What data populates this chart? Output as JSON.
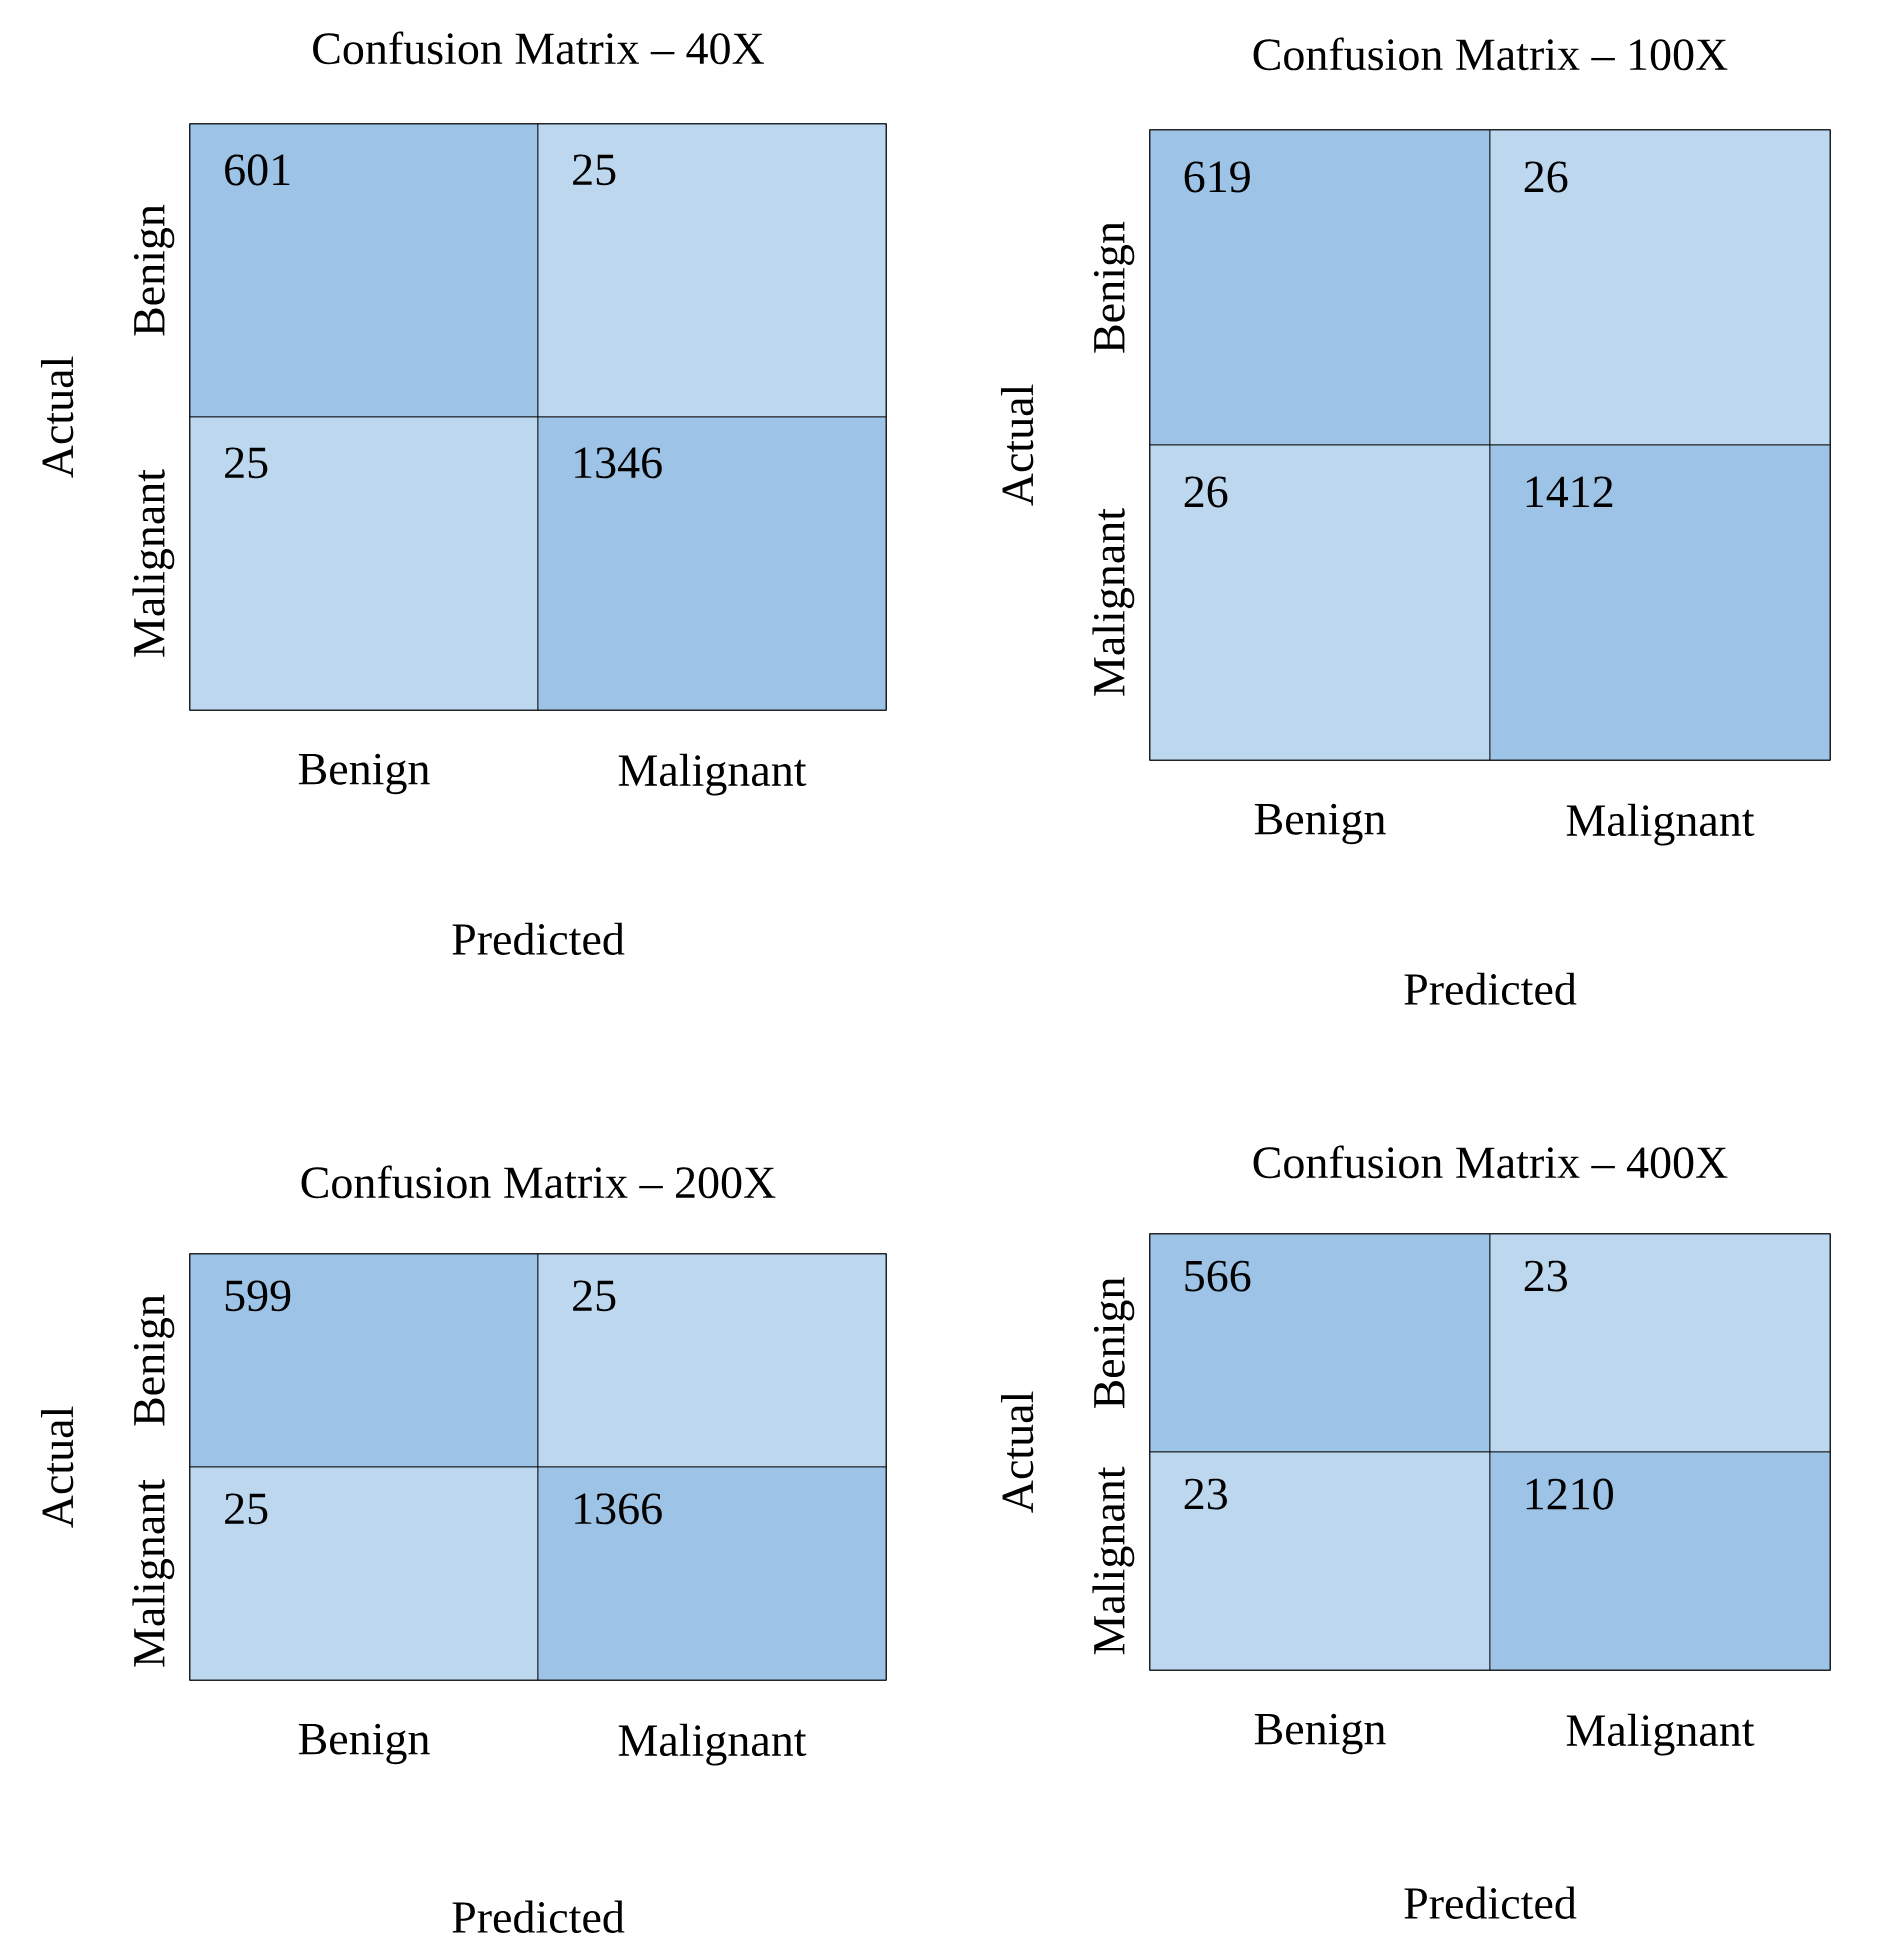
{
  "chart_data": [
    {
      "type": "heatmap",
      "title": "Confusion Matrix – 40X",
      "xlabel": "Predicted",
      "ylabel": "Actual",
      "categories": [
        "Benign",
        "Malignant"
      ],
      "y_categories": [
        "Benign",
        "Malignant"
      ],
      "cells": [
        [
          601,
          25
        ],
        [
          25,
          1346
        ]
      ],
      "colors": [
        "#bdd7ee",
        "#9dc3e6"
      ],
      "data_labels": true
    },
    {
      "type": "heatmap",
      "title": "Confusion Matrix – 100X",
      "xlabel": "Predicted",
      "ylabel": "Actual",
      "categories": [
        "Benign",
        "Malignant"
      ],
      "y_categories": [
        "Benign",
        "Malignant"
      ],
      "cells": [
        [
          619,
          26
        ],
        [
          26,
          1412
        ]
      ],
      "colors": [
        "#bdd7ee",
        "#9dc3e6"
      ],
      "data_labels": true
    },
    {
      "type": "heatmap",
      "title": "Confusion Matrix – 200X",
      "xlabel": "Predicted",
      "ylabel": "Actual",
      "categories": [
        "Benign",
        "Malignant"
      ],
      "y_categories": [
        "Benign",
        "Malignant"
      ],
      "cells": [
        [
          599,
          25
        ],
        [
          25,
          1366
        ]
      ],
      "colors": [
        "#bdd7ee",
        "#9dc3e6"
      ],
      "data_labels": true
    },
    {
      "type": "heatmap",
      "title": "Confusion Matrix – 400X",
      "xlabel": "Predicted",
      "ylabel": "Actual",
      "categories": [
        "Benign",
        "Malignant"
      ],
      "y_categories": [
        "Benign",
        "Malignant"
      ],
      "cells": [
        [
          566,
          23
        ],
        [
          23,
          1210
        ]
      ],
      "colors": [
        "#bdd7ee",
        "#9dc3e6"
      ],
      "data_labels": true
    }
  ]
}
